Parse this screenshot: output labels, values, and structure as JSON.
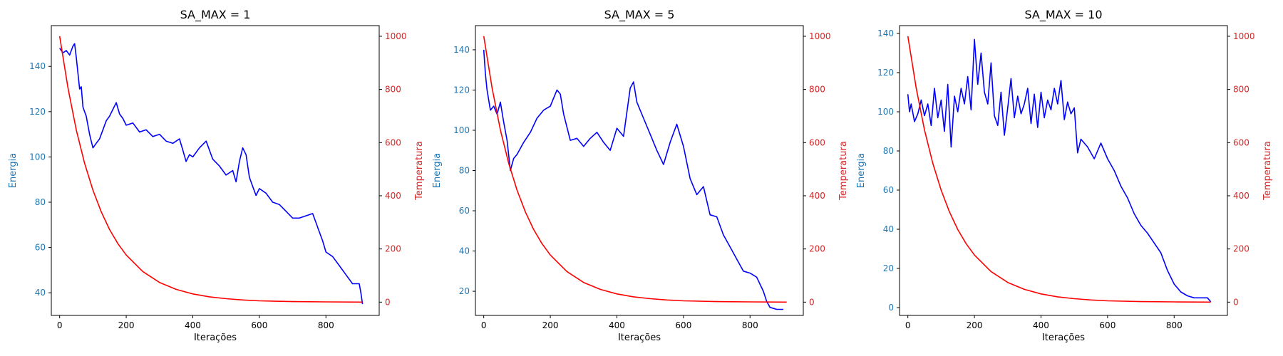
{
  "colors": {
    "energy": "#0000ff",
    "temperature": "#ff0000",
    "energy_axis": "#1f77b4",
    "temperature_axis": "#d62728",
    "frame": "#000000"
  },
  "chart_data": [
    {
      "type": "line",
      "title": "SA_MAX = 1",
      "xlabel": "Iterações",
      "ylabel": "Energia",
      "y2label": "Temperatura",
      "xlim": [
        -25,
        960
      ],
      "ylim": [
        30,
        158
      ],
      "y2lim": [
        -50,
        1040
      ],
      "xticks": [
        0,
        200,
        400,
        600,
        800
      ],
      "yticks": [
        40,
        60,
        80,
        100,
        120,
        140
      ],
      "y2ticks": [
        0,
        200,
        400,
        600,
        800,
        1000
      ],
      "grid": false,
      "series": [
        {
          "axis": "left",
          "color": "#0000ff",
          "x": [
            0,
            10,
            20,
            30,
            40,
            45,
            50,
            60,
            65,
            70,
            80,
            90,
            95,
            100,
            110,
            120,
            130,
            140,
            150,
            160,
            170,
            180,
            190,
            200,
            220,
            240,
            260,
            280,
            300,
            320,
            340,
            360,
            370,
            380,
            390,
            400,
            420,
            440,
            460,
            480,
            500,
            520,
            530,
            540,
            550,
            560,
            570,
            580,
            590,
            600,
            620,
            640,
            660,
            680,
            700,
            720,
            740,
            760,
            770,
            780,
            790,
            800,
            820,
            840,
            860,
            880,
            890,
            900,
            905,
            910
          ],
          "y": [
            148,
            146,
            147,
            145,
            149,
            150,
            144,
            130,
            131,
            122,
            118,
            110,
            107,
            104,
            106,
            108,
            112,
            116,
            118,
            121,
            124,
            119,
            117,
            114,
            115,
            111,
            112,
            109,
            110,
            107,
            106,
            108,
            103,
            98,
            101,
            100,
            104,
            107,
            99,
            96,
            92,
            94,
            89,
            98,
            104,
            101,
            91,
            87,
            83,
            86,
            84,
            80,
            79,
            76,
            73,
            73,
            74,
            75,
            71,
            67,
            63,
            58,
            56,
            52,
            48,
            44,
            44,
            44,
            40,
            35
          ]
        },
        {
          "axis": "right",
          "color": "#ff0000",
          "x": [
            0,
            25,
            50,
            75,
            100,
            125,
            150,
            175,
            200,
            250,
            300,
            350,
            400,
            450,
            500,
            550,
            600,
            700,
            800,
            910
          ],
          "y": [
            1000,
            805,
            648,
            522,
            421,
            339,
            273,
            220,
            177,
            115,
            74,
            48,
            31,
            20,
            13,
            8,
            5,
            2,
            1,
            0
          ]
        }
      ]
    },
    {
      "type": "line",
      "title": "SA_MAX = 5",
      "xlabel": "Iterações",
      "ylabel": "Energia",
      "y2label": "Temperatura",
      "xlim": [
        -25,
        960
      ],
      "ylim": [
        8,
        152
      ],
      "y2lim": [
        -50,
        1040
      ],
      "xticks": [
        0,
        200,
        400,
        600,
        800
      ],
      "yticks": [
        20,
        40,
        60,
        80,
        100,
        120,
        140
      ],
      "y2ticks": [
        0,
        200,
        400,
        600,
        800,
        1000
      ],
      "grid": false,
      "series": [
        {
          "axis": "left",
          "color": "#0000ff",
          "x": [
            0,
            5,
            10,
            20,
            30,
            40,
            50,
            60,
            70,
            80,
            90,
            100,
            120,
            140,
            160,
            180,
            200,
            210,
            220,
            230,
            240,
            260,
            280,
            300,
            320,
            340,
            360,
            380,
            400,
            420,
            440,
            450,
            460,
            480,
            500,
            520,
            540,
            560,
            580,
            600,
            620,
            640,
            660,
            680,
            700,
            720,
            740,
            760,
            780,
            800,
            820,
            840,
            850,
            860,
            880,
            900
          ],
          "y": [
            140,
            128,
            120,
            110,
            112,
            108,
            114,
            104,
            95,
            80,
            86,
            88,
            94,
            99,
            106,
            110,
            112,
            116,
            120,
            118,
            108,
            95,
            96,
            92,
            96,
            99,
            94,
            90,
            101,
            97,
            121,
            124,
            114,
            106,
            98,
            90,
            83,
            94,
            103,
            92,
            76,
            68,
            72,
            58,
            57,
            48,
            42,
            36,
            30,
            29,
            27,
            20,
            15,
            12,
            11,
            11
          ]
        },
        {
          "axis": "right",
          "color": "#ff0000",
          "x": [
            0,
            25,
            50,
            75,
            100,
            125,
            150,
            175,
            200,
            250,
            300,
            350,
            400,
            450,
            500,
            550,
            600,
            700,
            800,
            910
          ],
          "y": [
            1000,
            805,
            648,
            522,
            421,
            339,
            273,
            220,
            177,
            115,
            74,
            48,
            31,
            20,
            13,
            8,
            5,
            2,
            1,
            0
          ]
        }
      ]
    },
    {
      "type": "line",
      "title": "SA_MAX = 10",
      "xlabel": "Iterações",
      "ylabel": "Energia",
      "y2label": "Temperatura",
      "xlim": [
        -25,
        960
      ],
      "ylim": [
        -4,
        144
      ],
      "y2lim": [
        -50,
        1040
      ],
      "xticks": [
        0,
        200,
        400,
        600,
        800
      ],
      "yticks": [
        0,
        20,
        40,
        60,
        80,
        100,
        120,
        140
      ],
      "y2ticks": [
        0,
        200,
        400,
        600,
        800,
        1000
      ],
      "grid": false,
      "series": [
        {
          "axis": "left",
          "color": "#0000ff",
          "x": [
            0,
            5,
            10,
            20,
            30,
            40,
            50,
            60,
            70,
            80,
            90,
            100,
            110,
            120,
            130,
            140,
            150,
            160,
            170,
            180,
            190,
            200,
            210,
            220,
            230,
            240,
            250,
            260,
            270,
            280,
            290,
            300,
            310,
            320,
            330,
            340,
            350,
            360,
            370,
            380,
            390,
            400,
            410,
            420,
            430,
            440,
            450,
            460,
            470,
            480,
            490,
            500,
            510,
            520,
            540,
            560,
            580,
            600,
            620,
            640,
            660,
            680,
            700,
            720,
            740,
            760,
            780,
            800,
            820,
            840,
            860,
            880,
            900,
            910
          ],
          "y": [
            109,
            100,
            104,
            95,
            99,
            106,
            98,
            104,
            93,
            112,
            97,
            106,
            90,
            114,
            82,
            108,
            100,
            112,
            104,
            118,
            101,
            137,
            114,
            130,
            110,
            104,
            125,
            98,
            93,
            110,
            88,
            102,
            117,
            97,
            108,
            99,
            104,
            112,
            94,
            109,
            92,
            110,
            97,
            106,
            101,
            112,
            104,
            116,
            96,
            105,
            99,
            102,
            79,
            86,
            82,
            76,
            84,
            76,
            70,
            62,
            56,
            48,
            42,
            38,
            33,
            28,
            19,
            12,
            8,
            6,
            5,
            5,
            5,
            3
          ]
        },
        {
          "axis": "right",
          "color": "#ff0000",
          "x": [
            0,
            25,
            50,
            75,
            100,
            125,
            150,
            175,
            200,
            250,
            300,
            350,
            400,
            450,
            500,
            550,
            600,
            700,
            800,
            910
          ],
          "y": [
            1000,
            805,
            648,
            522,
            421,
            339,
            273,
            220,
            177,
            115,
            74,
            48,
            31,
            20,
            13,
            8,
            5,
            2,
            1,
            0
          ]
        }
      ]
    }
  ]
}
